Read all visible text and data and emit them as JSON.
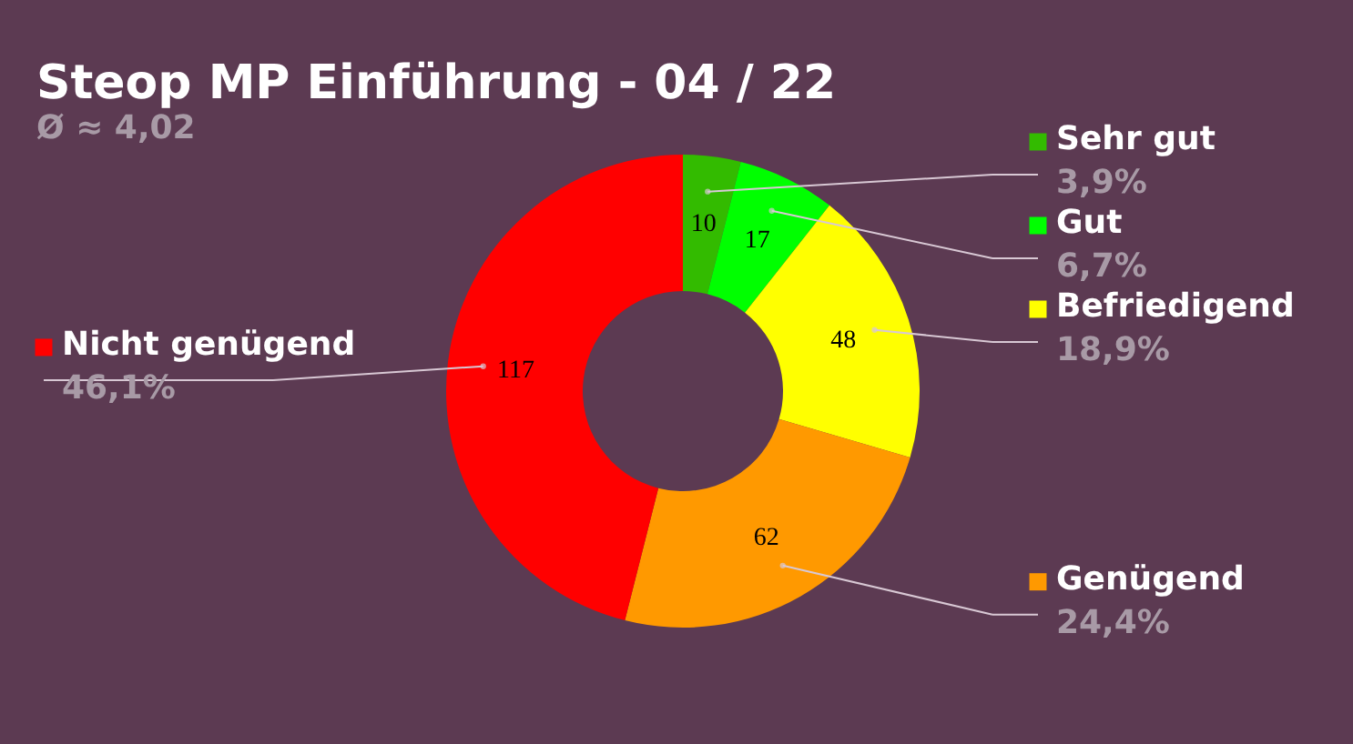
{
  "chart_data": {
    "type": "donut",
    "title": "Steop MP Einführung - 04 / 22",
    "subtitle": "Ø ≈ 4,02",
    "categories": [
      "Sehr gut",
      "Gut",
      "Befriedigend",
      "Genügend",
      "Nicht genügend"
    ],
    "values": [
      10,
      17,
      48,
      62,
      117
    ],
    "colors": [
      "#33bb00",
      "#00ff00",
      "#ffff00",
      "#ff9900",
      "#ff0000"
    ],
    "data_labels": true,
    "legend": "right",
    "annotations": [
      "3,9%",
      "6,7%",
      "18,9%",
      "24,4%",
      "46,1%"
    ]
  }
}
